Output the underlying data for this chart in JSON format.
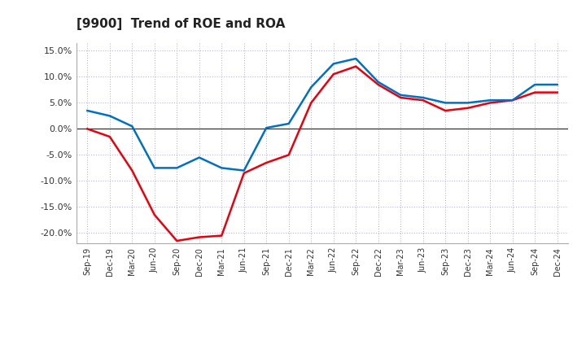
{
  "title": "[9900]  Trend of ROE and ROA",
  "x_labels": [
    "Sep-19",
    "Dec-19",
    "Mar-20",
    "Jun-20",
    "Sep-20",
    "Dec-20",
    "Mar-21",
    "Jun-21",
    "Sep-21",
    "Dec-21",
    "Mar-22",
    "Jun-22",
    "Sep-22",
    "Dec-22",
    "Mar-23",
    "Jun-23",
    "Sep-23",
    "Dec-23",
    "Mar-24",
    "Jun-24",
    "Sep-24",
    "Dec-24"
  ],
  "roe": [
    0.0,
    -1.5,
    -8.0,
    -16.5,
    -21.5,
    -20.8,
    -20.5,
    -8.5,
    -6.5,
    -5.0,
    5.0,
    10.5,
    12.0,
    8.5,
    6.0,
    5.5,
    3.5,
    4.0,
    5.0,
    5.5,
    7.0,
    7.0
  ],
  "roa": [
    3.5,
    2.5,
    0.5,
    -7.5,
    -7.5,
    -5.5,
    -7.5,
    -8.0,
    0.2,
    1.0,
    8.0,
    12.5,
    13.5,
    9.0,
    6.5,
    6.0,
    5.0,
    5.0,
    5.5,
    5.5,
    8.5,
    8.5
  ],
  "roe_color": "#e8000d",
  "roa_color": "#0070c0",
  "background_color": "#ffffff",
  "grid_color": "#aaaacc",
  "ylim": [
    -22.0,
    16.5
  ],
  "yticks": [
    -20.0,
    -15.0,
    -10.0,
    -5.0,
    0.0,
    5.0,
    10.0,
    15.0
  ],
  "linewidth": 1.8
}
